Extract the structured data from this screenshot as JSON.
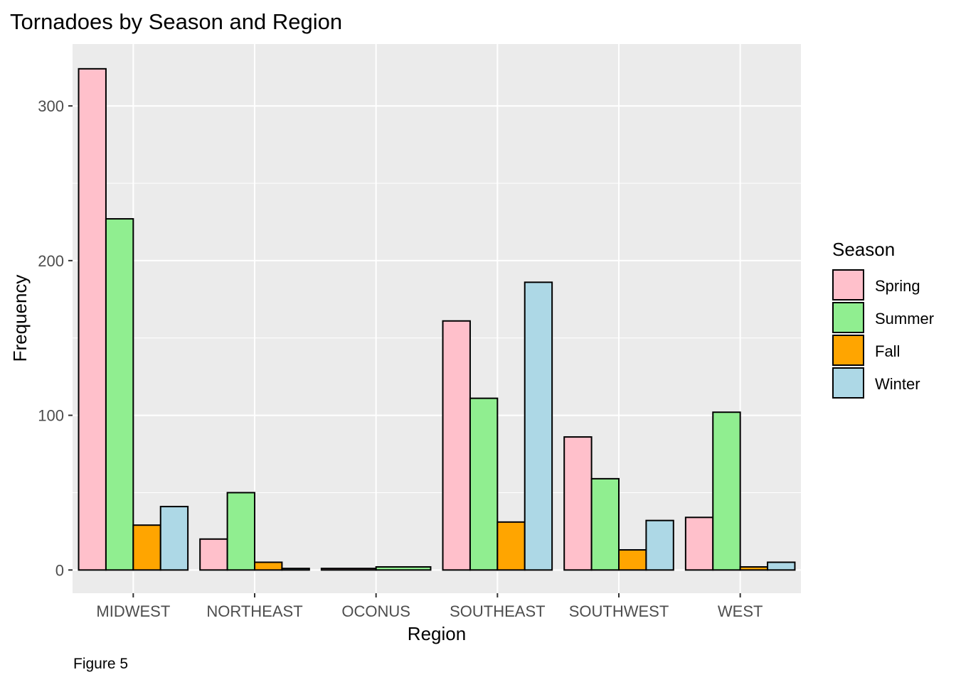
{
  "chart_data": {
    "type": "bar",
    "title": "Tornadoes by Season and Region",
    "xlabel": "Region",
    "ylabel": "Frequency",
    "caption": "Figure 5",
    "categories": [
      "MIDWEST",
      "NORTHEAST",
      "OCONUS",
      "SOUTHEAST",
      "SOUTHWEST",
      "WEST"
    ],
    "yticks": [
      0,
      100,
      200,
      300
    ],
    "ylim": [
      -15,
      340
    ],
    "grid": true,
    "legend": {
      "title": "Season",
      "position": "right"
    },
    "series": [
      {
        "name": "Spring",
        "color": "#ffc0cb",
        "values": [
          324,
          20,
          1,
          161,
          86,
          34
        ]
      },
      {
        "name": "Summer",
        "color": "#90ee90",
        "values": [
          227,
          50,
          2,
          111,
          59,
          102
        ]
      },
      {
        "name": "Fall",
        "color": "#ffa500",
        "values": [
          29,
          5,
          null,
          31,
          13,
          2
        ]
      },
      {
        "name": "Winter",
        "color": "#add8e6",
        "values": [
          41,
          1,
          null,
          186,
          32,
          5
        ]
      }
    ]
  }
}
